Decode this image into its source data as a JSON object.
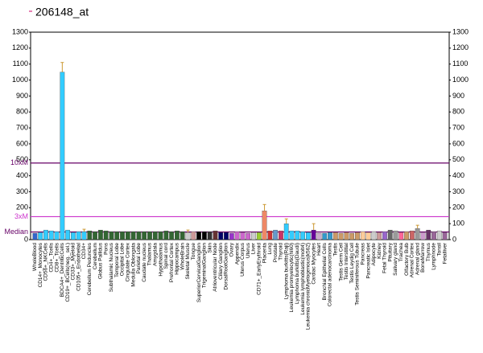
{
  "chart_data": {
    "type": "bar",
    "title": "206148_at",
    "categories": [
      "WholeBlood",
      "CD14+_Monocytes",
      "CD56+_NKCells",
      "CD4+_Tcells",
      "CD8+_Tcells",
      "BDCA4+_DentriticCells",
      "CD19+_BCells(neg._sel.)",
      "CD33+_Myeloid",
      "CD105+_Endothelial",
      "CD34+",
      "Cerebellum Peduncles",
      "Cerebellum",
      "Globus Pallidus",
      "Pons",
      "Subthalamic Nucleus",
      "Temporal Lobe",
      "Occipital Lobe",
      "Cingulate Cortex",
      "Medulla Oblongata",
      "Parietal Lobe",
      "Caudate nucleus",
      "Thalamus",
      "Amygdala",
      "Hypothalamus",
      "Spinal cord",
      "Prefrontal Cortex",
      "Hippocampus",
      "WholeBrain",
      "Skeletal Muscle",
      "Tongue",
      "SuperiorCervicalGanglion",
      "TrigeminalGanglion",
      "Skin",
      "Atrioventricular Node",
      "Ciliary Ganglion",
      "DorsalRootGanglion",
      "Ovary",
      "Appendix",
      "Uterus Corpus",
      "Uterus",
      "Liver",
      "CD71+_EarlyErythroid",
      "Placenta",
      "Lung",
      "Prostate",
      "Thyroid",
      "Lymphoma burkitts(Raji)",
      "Leukemia promyelocytic(hl60)",
      "Lymphoma burkitts(Daudi)",
      "Leukemia lymphoblastic(molt4)",
      "Leukemia chronicMyelogenous(k562)",
      "Cardiac Myocytes",
      "Heart",
      "Bronchial Epithelial Cells",
      "Colorectal adenocarcinoma",
      "Testis",
      "Testis Germ Cell",
      "Testis Interstitial",
      "Testis Leydig Cell",
      "Testis Seminiferous Tubule",
      "Pancreas",
      "Pancreatic Islet",
      "Adipocyte",
      "Kidney",
      "Fetal Thyroid",
      "Pituitary",
      "Salivary gland",
      "Trachea",
      "Olfactory Bulb",
      "Adrenal Cortex",
      "Adrenal gland",
      "BoneMarrow",
      "Thymus",
      "Lymphnode",
      "Tonsil",
      "Fetalliver"
    ],
    "values": [
      40,
      45,
      60,
      55,
      50,
      1050,
      60,
      45,
      50,
      50,
      55,
      50,
      60,
      55,
      50,
      50,
      50,
      50,
      50,
      50,
      50,
      50,
      50,
      50,
      55,
      50,
      55,
      50,
      45,
      50,
      50,
      50,
      50,
      55,
      45,
      45,
      40,
      50,
      45,
      40,
      45,
      45,
      180,
      55,
      60,
      55,
      100,
      55,
      55,
      50,
      45,
      60,
      40,
      40,
      45,
      45,
      40,
      45,
      40,
      45,
      50,
      45,
      50,
      45,
      50,
      60,
      55,
      45,
      50,
      55,
      70,
      45,
      60,
      50,
      55,
      45
    ],
    "errors": [
      null,
      null,
      null,
      null,
      null,
      60,
      null,
      null,
      null,
      15,
      null,
      null,
      null,
      null,
      null,
      null,
      null,
      null,
      null,
      null,
      null,
      null,
      null,
      null,
      null,
      null,
      null,
      null,
      15,
      null,
      null,
      null,
      null,
      null,
      null,
      null,
      null,
      null,
      null,
      null,
      null,
      null,
      40,
      null,
      null,
      null,
      30,
      null,
      null,
      null,
      null,
      40,
      null,
      null,
      null,
      null,
      null,
      null,
      null,
      null,
      null,
      null,
      null,
      null,
      null,
      null,
      null,
      null,
      null,
      null,
      20,
      null,
      null,
      null,
      null,
      null
    ],
    "colors": [
      "#3366cc",
      "#33ccff",
      "#33ccff",
      "#33ccff",
      "#33ccff",
      "#33ccff",
      "#33ccff",
      "#33ccff",
      "#33ccff",
      "#33ccff",
      "#336633",
      "#336633",
      "#336633",
      "#336633",
      "#336633",
      "#336633",
      "#336633",
      "#336633",
      "#336633",
      "#336633",
      "#336633",
      "#336633",
      "#336633",
      "#336633",
      "#336633",
      "#336633",
      "#336633",
      "#336633",
      "#cccccc",
      "#cc9999",
      "#000000",
      "#000000",
      "#333333",
      "#663333",
      "#000066",
      "#000066",
      "#9933cc",
      "#cc66cc",
      "#cc66cc",
      "#cc66cc",
      "#cccccc",
      "#99cc33",
      "#ee8866",
      "#cc3333",
      "#6699cc",
      "#cc3366",
      "#33ccff",
      "#33ccff",
      "#33ccff",
      "#33ccff",
      "#33ccff",
      "#660099",
      "#ccaacc",
      "#3399cc",
      "#3399cc",
      "#cc9966",
      "#cc9966",
      "#cc9966",
      "#cc9966",
      "#cc9966",
      "#ffcc99",
      "#ffcc99",
      "#cccccc",
      "#cc9999",
      "#9966cc",
      "#666666",
      "#999999",
      "#ff6699",
      "#cc9966",
      "#cc6666",
      "#999999",
      "#cc99cc",
      "#663366",
      "#996699",
      "#cccccc",
      "#996699"
    ],
    "ylim": [
      0,
      1300
    ],
    "yticks": [
      0,
      200,
      300,
      400,
      500,
      600,
      700,
      800,
      900,
      1000,
      1100,
      1200,
      1300
    ],
    "y2ticks": [
      0,
      100,
      200,
      300,
      400,
      500,
      600,
      700,
      800,
      900,
      1000,
      1100,
      1200,
      1300
    ],
    "reference_lines": [
      {
        "label": "10xM",
        "value": 480,
        "color": "#660066"
      },
      {
        "label": "3xM",
        "value": 144,
        "color": "#cc33cc"
      },
      {
        "label": "Median",
        "value": 48,
        "color": "#660066"
      }
    ]
  }
}
